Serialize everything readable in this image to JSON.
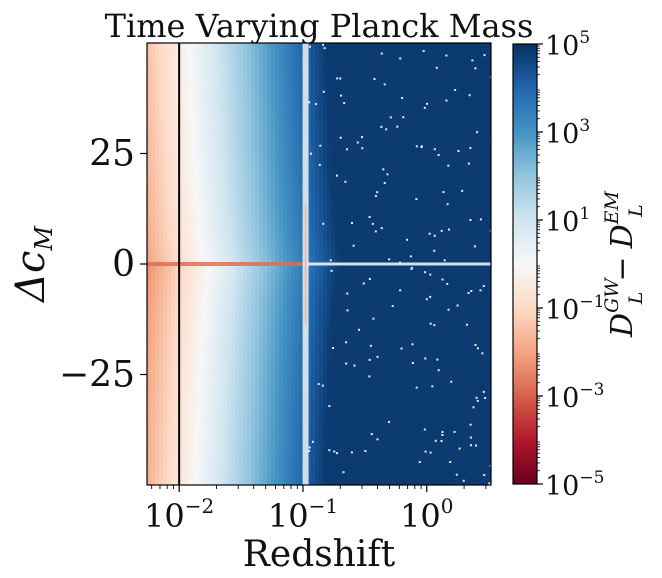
{
  "chart_data": {
    "type": "heatmap",
    "title": "Time Varying Planck Mass",
    "xlabel": "Redshift",
    "ylabel": {
      "base": "Δc",
      "sub": "M"
    },
    "x_scale": "log",
    "x_range": [
      0.0055,
      3.3
    ],
    "y_range": [
      -50,
      50
    ],
    "x_ticks": [
      {
        "value": 0.01,
        "base": "10",
        "exp": "−2"
      },
      {
        "value": 0.1,
        "base": "10",
        "exp": "−1"
      },
      {
        "value": 1,
        "base": "10",
        "exp": "0"
      }
    ],
    "y_ticks": [
      {
        "value": 25,
        "label": "25"
      },
      {
        "value": 0,
        "label": "0"
      },
      {
        "value": -25,
        "label": "−25"
      }
    ],
    "vertical_line": {
      "x": 0.01,
      "color": "#000000"
    },
    "colorbar": {
      "scale": "log",
      "range": [
        1e-05,
        100000
      ],
      "colormap": "RdBu",
      "colors_low_to_high": [
        "#67001f",
        "#b2182b",
        "#d6604d",
        "#f4a582",
        "#fddbc7",
        "#f7f7f7",
        "#d1e5f0",
        "#92c5de",
        "#4393c3",
        "#2166ac",
        "#053061"
      ],
      "ticks": [
        {
          "value": 100000,
          "base": "10",
          "exp": "5"
        },
        {
          "value": 1000,
          "base": "10",
          "exp": "3"
        },
        {
          "value": 10,
          "base": "10",
          "exp": "1"
        },
        {
          "value": 0.1,
          "base": "10",
          "exp": "−1"
        },
        {
          "value": 0.001,
          "base": "10",
          "exp": "−3"
        },
        {
          "value": 1e-05,
          "base": "10",
          "exp": "−5"
        }
      ],
      "label": {
        "a": "D",
        "a_sup": "GW",
        "a_sub": "L",
        "minus": "−",
        "b": "D",
        "b_sup": "EM",
        "b_sub": "L"
      }
    }
  }
}
